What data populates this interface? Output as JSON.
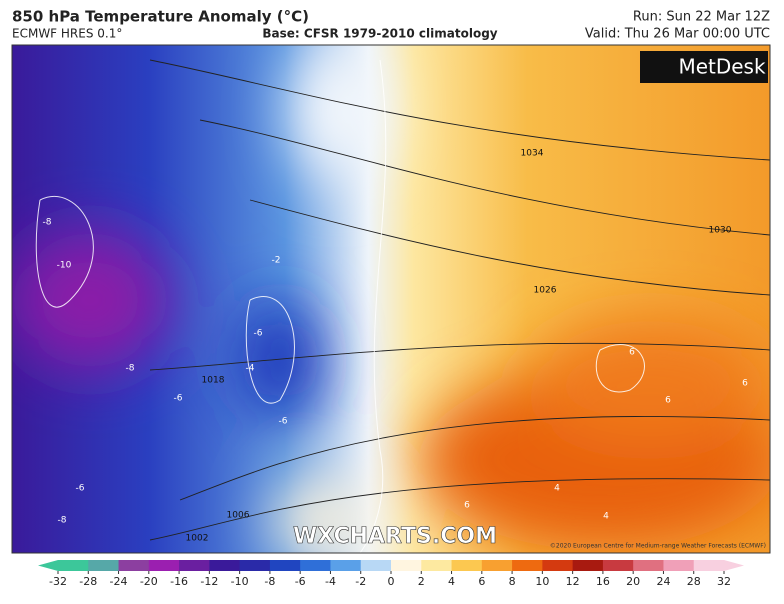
{
  "header": {
    "title": "850 hPa Temperature Anomaly (°C)",
    "model": "ECMWF HRES 0.1°",
    "base": "Base: CFSR 1979-2010 climatology",
    "run": "Run: Sun 22 Mar 12Z",
    "valid": "Valid: Thu 26 Mar 00:00 UTC"
  },
  "map": {
    "logo": "MetDesk",
    "watermark": "WXCHARTS.COM",
    "copyright": "©2020 European Centre for Medium-range Weather Forecasts (ECMWF)",
    "isobar_labels": [
      "1034",
      "1030",
      "1026",
      "1018",
      "1006",
      "1002"
    ],
    "temperature_labels": [
      "-8",
      "-10",
      "-8",
      "-6",
      "-6",
      "-4",
      "-6",
      "-6",
      "-8",
      "6",
      "6",
      "6",
      "6",
      "4",
      "4",
      "-2"
    ]
  },
  "colorbar": {
    "ticks": [
      -32,
      -28,
      -24,
      -20,
      -16,
      -12,
      -10,
      -8,
      -6,
      -4,
      -2,
      0,
      2,
      4,
      6,
      8,
      10,
      12,
      16,
      20,
      24,
      28,
      32
    ],
    "colors": [
      "#3cc79a",
      "#56a8a8",
      "#8c3fa0",
      "#9b1fb0",
      "#6a1fa0",
      "#3a1a9a",
      "#2a2aa8",
      "#2045c0",
      "#2f6fd8",
      "#5aa0e8",
      "#b8d8f5",
      "#fff5e0",
      "#fde9a0",
      "#fcc850",
      "#f8a030",
      "#ee6a10",
      "#d43a10",
      "#a81a10",
      "#c83a40",
      "#e07080",
      "#f0a0b8",
      "#f8d0e0"
    ]
  }
}
